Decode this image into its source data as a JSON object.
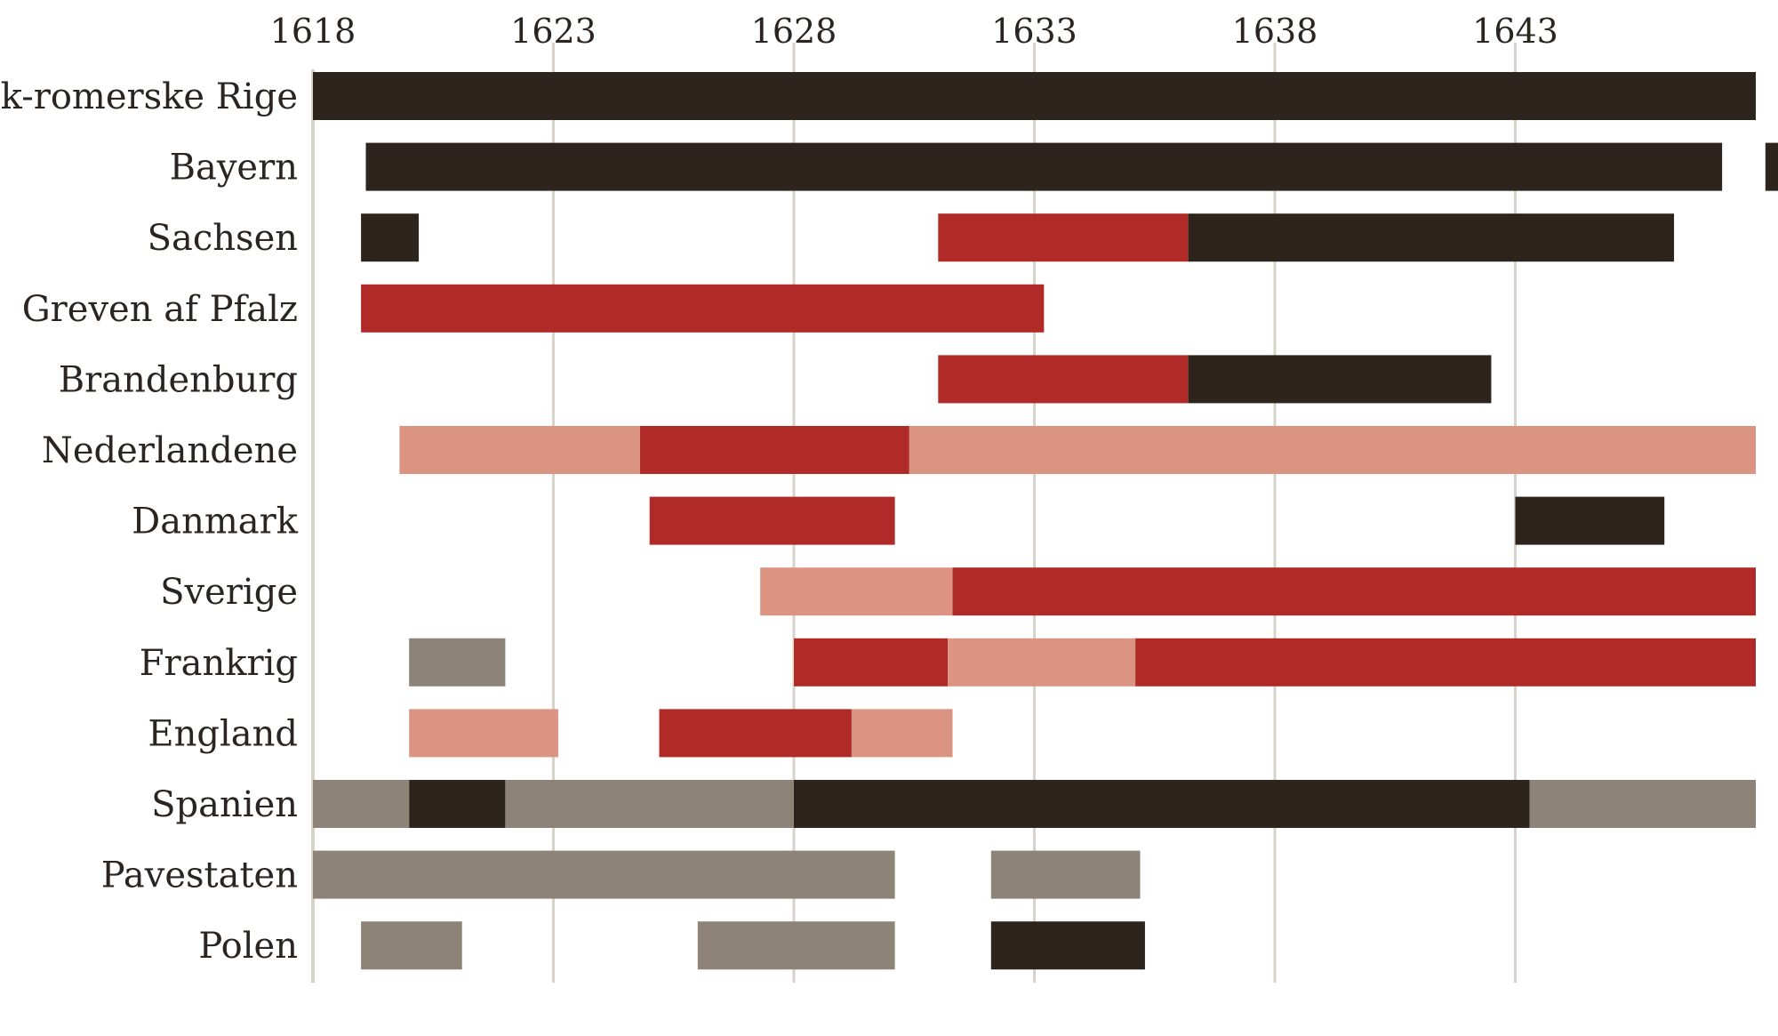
{
  "chart_data": {
    "type": "gantt",
    "x_ticks": [
      "1618",
      "1623",
      "1628",
      "1633",
      "1638",
      "1643"
    ],
    "x_tick_values": [
      1618,
      1623,
      1628,
      1633,
      1638,
      1643
    ],
    "xlim": [
      1618,
      1647.7
    ],
    "colors": {
      "dark": "#2d241d",
      "red": "#b02a27",
      "pink": "#db9382",
      "grey": "#8d8377"
    },
    "rows": [
      {
        "label": "Tysk-romerske Rige",
        "label_visible": "ysk-romerske Rige",
        "segments": [
          {
            "start": 1618.0,
            "end": 1648.0,
            "color": "dark"
          }
        ]
      },
      {
        "label": "Bayern",
        "segments": [
          {
            "start": 1619.1,
            "end": 1647.3,
            "color": "dark"
          },
          {
            "start": 1648.2,
            "end": 1649.0,
            "color": "dark"
          }
        ]
      },
      {
        "label": "Sachsen",
        "segments": [
          {
            "start": 1619.0,
            "end": 1620.2,
            "color": "dark"
          },
          {
            "start": 1631.0,
            "end": 1636.2,
            "color": "red"
          },
          {
            "start": 1636.2,
            "end": 1646.3,
            "color": "dark"
          }
        ]
      },
      {
        "label": "Greven af Pfalz",
        "segments": [
          {
            "start": 1619.0,
            "end": 1633.2,
            "color": "red"
          }
        ]
      },
      {
        "label": "Brandenburg",
        "segments": [
          {
            "start": 1631.0,
            "end": 1636.2,
            "color": "red"
          },
          {
            "start": 1636.2,
            "end": 1642.5,
            "color": "dark"
          }
        ]
      },
      {
        "label": "Nederlandene",
        "segments": [
          {
            "start": 1619.8,
            "end": 1624.8,
            "color": "pink"
          },
          {
            "start": 1624.8,
            "end": 1630.4,
            "color": "red"
          },
          {
            "start": 1630.4,
            "end": 1648.0,
            "color": "pink"
          }
        ]
      },
      {
        "label": "Danmark",
        "segments": [
          {
            "start": 1625.0,
            "end": 1630.1,
            "color": "red"
          },
          {
            "start": 1643.0,
            "end": 1646.1,
            "color": "dark"
          }
        ]
      },
      {
        "label": "Sverige",
        "segments": [
          {
            "start": 1627.3,
            "end": 1631.3,
            "color": "pink"
          },
          {
            "start": 1631.3,
            "end": 1648.0,
            "color": "red"
          }
        ]
      },
      {
        "label": "Frankrig",
        "segments": [
          {
            "start": 1620.0,
            "end": 1622.0,
            "color": "grey"
          },
          {
            "start": 1628.0,
            "end": 1631.2,
            "color": "red"
          },
          {
            "start": 1631.2,
            "end": 1635.1,
            "color": "pink"
          },
          {
            "start": 1635.1,
            "end": 1648.0,
            "color": "red"
          }
        ]
      },
      {
        "label": "England",
        "segments": [
          {
            "start": 1620.0,
            "end": 1623.1,
            "color": "pink"
          },
          {
            "start": 1625.2,
            "end": 1629.2,
            "color": "red"
          },
          {
            "start": 1629.2,
            "end": 1631.3,
            "color": "pink"
          }
        ]
      },
      {
        "label": "Spanien",
        "segments": [
          {
            "start": 1618.0,
            "end": 1620.0,
            "color": "grey"
          },
          {
            "start": 1620.0,
            "end": 1622.0,
            "color": "dark"
          },
          {
            "start": 1622.0,
            "end": 1628.0,
            "color": "grey"
          },
          {
            "start": 1628.0,
            "end": 1643.3,
            "color": "dark"
          },
          {
            "start": 1643.3,
            "end": 1648.0,
            "color": "grey"
          }
        ]
      },
      {
        "label": "Pavestaten",
        "segments": [
          {
            "start": 1618.0,
            "end": 1630.1,
            "color": "grey"
          },
          {
            "start": 1632.1,
            "end": 1635.2,
            "color": "grey"
          }
        ]
      },
      {
        "label": "Polen",
        "segments": [
          {
            "start": 1619.0,
            "end": 1621.1,
            "color": "grey"
          },
          {
            "start": 1626.0,
            "end": 1630.1,
            "color": "grey"
          },
          {
            "start": 1632.1,
            "end": 1635.3,
            "color": "dark"
          }
        ]
      }
    ]
  }
}
